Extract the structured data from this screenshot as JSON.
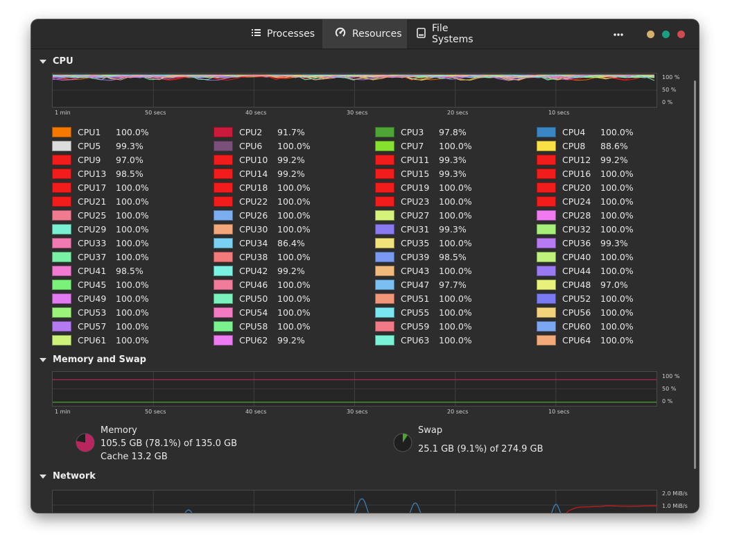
{
  "tabs": [
    {
      "label": "Processes",
      "icon": "list-icon",
      "active": false
    },
    {
      "label": "Resources",
      "icon": "gauge-icon",
      "active": true
    },
    {
      "label": "File Systems",
      "icon": "drive-icon",
      "active": false
    }
  ],
  "window_buttons": {
    "colors": [
      "#d4b06a",
      "#1a9f80",
      "#d04a54"
    ]
  },
  "sections": {
    "cpu": "CPU",
    "memory": "Memory and Swap",
    "network": "Network"
  },
  "cpu_graph": {
    "y_labels": [
      "100 %",
      "50 %",
      "0 %"
    ],
    "x_labels": [
      "1 min",
      "50 secs",
      "40 secs",
      "30 secs",
      "20 secs",
      "10 secs"
    ]
  },
  "cpus": [
    {
      "name": "CPU1",
      "value": "100.0%",
      "color": "#f57900"
    },
    {
      "name": "CPU2",
      "value": "91.7%",
      "color": "#cc1a3a"
    },
    {
      "name": "CPU3",
      "value": "97.8%",
      "color": "#4ea535"
    },
    {
      "name": "CPU4",
      "value": "100.0%",
      "color": "#3a86c4"
    },
    {
      "name": "CPU5",
      "value": "99.3%",
      "color": "#dcdcdc"
    },
    {
      "name": "CPU6",
      "value": "100.0%",
      "color": "#7a4f7a"
    },
    {
      "name": "CPU7",
      "value": "100.0%",
      "color": "#86e02e"
    },
    {
      "name": "CPU8",
      "value": "88.6%",
      "color": "#f8e045"
    },
    {
      "name": "CPU9",
      "value": "97.0%",
      "color": "#f21c1c"
    },
    {
      "name": "CPU10",
      "value": "99.2%",
      "color": "#f21c1c"
    },
    {
      "name": "CPU11",
      "value": "99.3%",
      "color": "#f21c1c"
    },
    {
      "name": "CPU12",
      "value": "99.2%",
      "color": "#f21c1c"
    },
    {
      "name": "CPU13",
      "value": "98.5%",
      "color": "#f21c1c"
    },
    {
      "name": "CPU14",
      "value": "99.2%",
      "color": "#f21c1c"
    },
    {
      "name": "CPU15",
      "value": "99.3%",
      "color": "#f21c1c"
    },
    {
      "name": "CPU16",
      "value": "100.0%",
      "color": "#f21c1c"
    },
    {
      "name": "CPU17",
      "value": "100.0%",
      "color": "#f21c1c"
    },
    {
      "name": "CPU18",
      "value": "100.0%",
      "color": "#f21c1c"
    },
    {
      "name": "CPU19",
      "value": "100.0%",
      "color": "#f21c1c"
    },
    {
      "name": "CPU20",
      "value": "100.0%",
      "color": "#f21c1c"
    },
    {
      "name": "CPU21",
      "value": "100.0%",
      "color": "#f21c1c"
    },
    {
      "name": "CPU22",
      "value": "100.0%",
      "color": "#f21c1c"
    },
    {
      "name": "CPU23",
      "value": "100.0%",
      "color": "#f21c1c"
    },
    {
      "name": "CPU24",
      "value": "100.0%",
      "color": "#f21c1c"
    },
    {
      "name": "CPU25",
      "value": "100.0%",
      "color": "#f07a8e"
    },
    {
      "name": "CPU26",
      "value": "100.0%",
      "color": "#7aaef0"
    },
    {
      "name": "CPU27",
      "value": "100.0%",
      "color": "#d6f27a"
    },
    {
      "name": "CPU28",
      "value": "100.0%",
      "color": "#f07af0"
    },
    {
      "name": "CPU29",
      "value": "100.0%",
      "color": "#7af0d2"
    },
    {
      "name": "CPU30",
      "value": "100.0%",
      "color": "#f2a67a"
    },
    {
      "name": "CPU31",
      "value": "99.3%",
      "color": "#8a7af2"
    },
    {
      "name": "CPU32",
      "value": "100.0%",
      "color": "#a6f07a"
    },
    {
      "name": "CPU33",
      "value": "100.0%",
      "color": "#f27ab2"
    },
    {
      "name": "CPU34",
      "value": "86.4%",
      "color": "#7ad2f2"
    },
    {
      "name": "CPU35",
      "value": "100.0%",
      "color": "#f2e27a"
    },
    {
      "name": "CPU36",
      "value": "99.3%",
      "color": "#b87af2"
    },
    {
      "name": "CPU37",
      "value": "100.0%",
      "color": "#7af0a6"
    },
    {
      "name": "CPU38",
      "value": "100.0%",
      "color": "#f27a7a"
    },
    {
      "name": "CPU39",
      "value": "98.5%",
      "color": "#7a9af2"
    },
    {
      "name": "CPU40",
      "value": "100.0%",
      "color": "#bef27a"
    },
    {
      "name": "CPU41",
      "value": "98.5%",
      "color": "#f27ad2"
    },
    {
      "name": "CPU42",
      "value": "99.2%",
      "color": "#7af2e2"
    },
    {
      "name": "CPU43",
      "value": "100.0%",
      "color": "#f2ba7a"
    },
    {
      "name": "CPU44",
      "value": "100.0%",
      "color": "#9a7af2"
    },
    {
      "name": "CPU45",
      "value": "100.0%",
      "color": "#7af27a"
    },
    {
      "name": "CPU46",
      "value": "100.0%",
      "color": "#f27a9a"
    },
    {
      "name": "CPU47",
      "value": "97.7%",
      "color": "#7abef2"
    },
    {
      "name": "CPU48",
      "value": "97.0%",
      "color": "#e6f27a"
    },
    {
      "name": "CPU49",
      "value": "100.0%",
      "color": "#e27af2"
    },
    {
      "name": "CPU50",
      "value": "100.0%",
      "color": "#7af2be"
    },
    {
      "name": "CPU51",
      "value": "100.0%",
      "color": "#f2967a"
    },
    {
      "name": "CPU52",
      "value": "100.0%",
      "color": "#7a7af2"
    },
    {
      "name": "CPU53",
      "value": "100.0%",
      "color": "#9af27a"
    },
    {
      "name": "CPU54",
      "value": "100.0%",
      "color": "#f27ac2"
    },
    {
      "name": "CPU55",
      "value": "100.0%",
      "color": "#7ae6f2"
    },
    {
      "name": "CPU56",
      "value": "100.0%",
      "color": "#f2d27a"
    },
    {
      "name": "CPU57",
      "value": "100.0%",
      "color": "#b47af2"
    },
    {
      "name": "CPU58",
      "value": "100.0%",
      "color": "#7af28e"
    },
    {
      "name": "CPU59",
      "value": "100.0%",
      "color": "#f27a86"
    },
    {
      "name": "CPU60",
      "value": "100.0%",
      "color": "#7aa6f2"
    },
    {
      "name": "CPU61",
      "value": "100.0%",
      "color": "#ccf27a"
    },
    {
      "name": "CPU62",
      "value": "99.2%",
      "color": "#ee7af2"
    },
    {
      "name": "CPU63",
      "value": "100.0%",
      "color": "#7af2d6"
    },
    {
      "name": "CPU64",
      "value": "100.0%",
      "color": "#f2aa7a"
    }
  ],
  "memory_graph": {
    "y_labels": [
      "100 %",
      "50 %",
      "0 %"
    ],
    "x_labels": [
      "1 min",
      "50 secs",
      "40 secs",
      "30 secs",
      "20 secs",
      "10 secs"
    ]
  },
  "memory": {
    "title": "Memory",
    "usage": "105.5 GB (78.1%) of 135.0 GB",
    "cache": "Cache 13.2 GB",
    "percent": 78.1,
    "color": "#b9255e"
  },
  "swap": {
    "title": "Swap",
    "usage": "25.1 GB (9.1%) of 274.9 GB",
    "percent": 9.1,
    "color": "#4ea535"
  },
  "network_graph": {
    "y_labels": [
      "2.0 MiB/s",
      "1.0 MiB/s"
    ],
    "receive_color": "#3a86c4",
    "send_color": "#cc1a1a"
  }
}
